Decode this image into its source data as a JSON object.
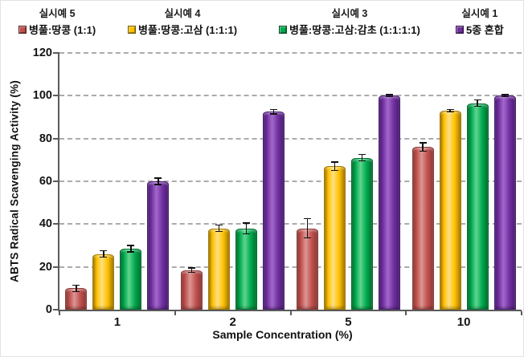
{
  "chart_data": {
    "type": "bar",
    "title": "",
    "xlabel": "Sample Concentration (%)",
    "ylabel": "ABTS Radical Scavenging Activity (%)",
    "categories": [
      "1",
      "2",
      "5",
      "10"
    ],
    "ylim": [
      0,
      120
    ],
    "y_ticks": [
      0,
      20,
      40,
      60,
      80,
      100,
      120
    ],
    "grid": "horizontal-dashed",
    "legend_position": "top",
    "error_bars": true,
    "series": [
      {
        "example_label": "실시예 5",
        "name": "병풀:땅콩 (1:1)",
        "color": "#C0504D",
        "color_dark": "#8E3B38",
        "color_light": "#DC9694",
        "values": [
          10,
          18.5,
          38,
          76
        ],
        "errors": [
          1.5,
          1,
          4.5,
          2
        ]
      },
      {
        "example_label": "실시예 4",
        "name": "병풀:땅콩:고삼 (1:1:1)",
        "color": "#FFC000",
        "color_dark": "#A67C00",
        "color_light": "#FFE083",
        "values": [
          26,
          38,
          67,
          93
        ],
        "errors": [
          1.5,
          1.5,
          2,
          0.5
        ]
      },
      {
        "example_label": "실시예 3",
        "name": "병풀:땅콩:고삼:감초 (1:1:1:1)",
        "color": "#00A94E",
        "color_dark": "#00702F",
        "color_light": "#5FD690",
        "values": [
          28.5,
          38,
          71,
          96.5
        ],
        "errors": [
          1.5,
          2.5,
          1.5,
          1.5
        ]
      },
      {
        "example_label": "실시예 1",
        "name": "5종 혼합",
        "color": "#7030A0",
        "color_dark": "#4A1D72",
        "color_light": "#A468CC",
        "values": [
          60,
          92.5,
          100,
          100
        ],
        "errors": [
          1.5,
          1,
          0.5,
          0.5
        ]
      }
    ],
    "style": {
      "gridline_color": "#ABABAB",
      "axis_color": "#5A5A5A",
      "error_bar_color": "#101010"
    }
  }
}
